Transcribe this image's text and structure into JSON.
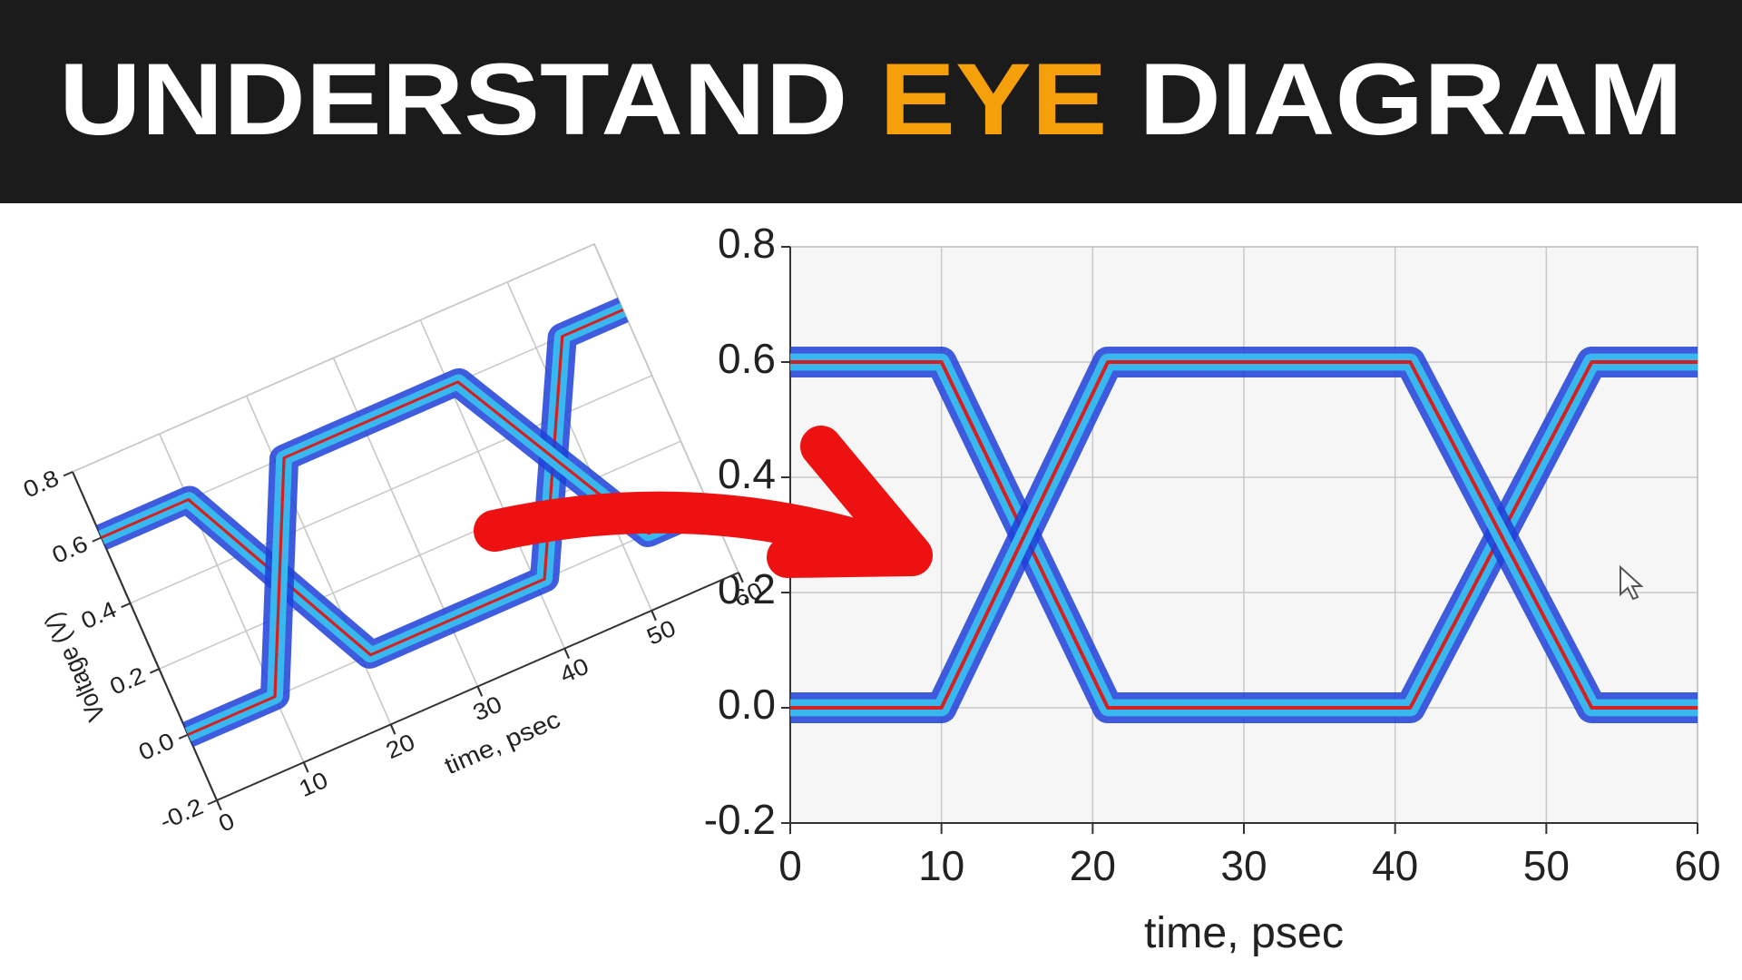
{
  "header": {
    "title": [
      "UNDERSTAND",
      "EYE",
      "DIAGRAM"
    ]
  },
  "chart_data": [
    {
      "type": "line",
      "xlabel": "time, psec",
      "ylabel": "Voltage (V)",
      "xlim": [
        0,
        60
      ],
      "ylim": [
        -0.2,
        0.8
      ],
      "xticks": [
        0,
        10,
        20,
        30,
        40,
        50,
        60
      ],
      "yticks": [
        -0.2,
        {
          "value": 0,
          "label": "0.0"
        },
        0.2,
        0.4,
        0.6,
        0.8
      ],
      "grid": true,
      "x": [
        0,
        10,
        21,
        41,
        53,
        60
      ],
      "series": [
        {
          "color": "#d42020",
          "values": [
            0.6,
            0.6,
            0,
            0,
            0.6,
            0.6
          ]
        },
        {
          "color": "#d42020",
          "values": [
            0,
            0,
            0.6,
            0.6,
            0,
            0
          ]
        }
      ]
    },
    {
      "type": "line",
      "xlabel": "time, psec",
      "xlim": [
        0,
        60
      ],
      "ylim": [
        -0.2,
        0.8
      ],
      "xticks": [
        0,
        10,
        20,
        30,
        40,
        50,
        60
      ],
      "yticks": [
        -0.2,
        {
          "value": 0,
          "label": "0.0"
        },
        0.2,
        0.4,
        0.6,
        0.8
      ],
      "grid": true,
      "x": [
        0,
        10,
        21,
        41,
        53,
        60
      ],
      "series": [
        {
          "color": "#d42020",
          "values": [
            0.6,
            0.6,
            0,
            0,
            0.6,
            0.6
          ]
        },
        {
          "color": "#d42020",
          "values": [
            0,
            0,
            0.6,
            0.6,
            0,
            0
          ]
        }
      ]
    }
  ]
}
